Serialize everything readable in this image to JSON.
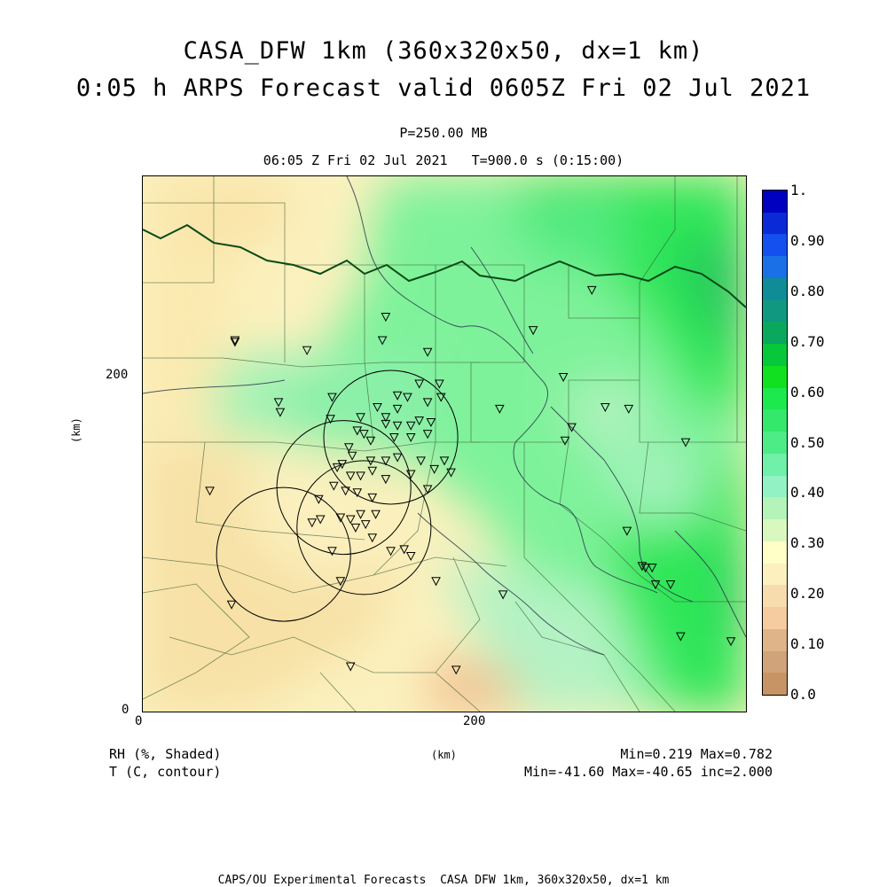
{
  "title": {
    "line1": "CASA_DFW 1km (360x320x50, dx=1 km)",
    "line2": "0:05 h ARPS Forecast valid 0605Z Fri 02 Jul 2021"
  },
  "subtitle": {
    "pressure_level": "P=250.00 MB",
    "time_line": "06:05 Z Fri 02 Jul 2021   T=900.0 s (0:15:00)"
  },
  "axes": {
    "x_label": "(km)",
    "y_label": "(km)",
    "x_ticks": [
      {
        "value": 0,
        "label": "0"
      },
      {
        "value": 200,
        "label": "200"
      }
    ],
    "y_ticks": [
      {
        "value": 0,
        "label": "0"
      },
      {
        "value": 200,
        "label": "200"
      }
    ],
    "x_range_km": [
      0,
      360
    ],
    "y_range_km": [
      0,
      320
    ]
  },
  "colorbar": {
    "labels": [
      "0.0",
      "0.10",
      "0.20",
      "0.30",
      "0.40",
      "0.50",
      "0.60",
      "0.70",
      "0.80",
      "0.90",
      "1."
    ],
    "colors": [
      "#c79466",
      "#d1a37a",
      "#e0b489",
      "#f5cba0",
      "#f7dcae",
      "#fbf0be",
      "#ffffc8",
      "#d8f8c0",
      "#b4f3ba",
      "#93f2c4",
      "#70f0a8",
      "#4dec86",
      "#33e86a",
      "#1de84e",
      "#10e020",
      "#06c83a",
      "#0aa85e",
      "#109880",
      "#108c96",
      "#1a70e6",
      "#1450f0",
      "#0a2ad8",
      "#0000c0"
    ]
  },
  "legend": {
    "field1": "RH (%, Shaded)",
    "field2": "T (C, contour)",
    "field1_stats": "Min=0.219 Max=0.782",
    "field2_stats": "Min=-41.60 Max=-40.65 inc=2.000",
    "units": "(km)"
  },
  "footer": "CAPS/OU Experimental Forecasts  CASA DFW 1km, 360x320x50, dx=1 km",
  "map": {
    "stations_km": [
      [
        55,
        222
      ],
      [
        55,
        221
      ],
      [
        98,
        216
      ],
      [
        143,
        222
      ],
      [
        145,
        236
      ],
      [
        170,
        215
      ],
      [
        113,
        188
      ],
      [
        152,
        189
      ],
      [
        165,
        196
      ],
      [
        177,
        196
      ],
      [
        81,
        185
      ],
      [
        82,
        179
      ],
      [
        112,
        175
      ],
      [
        130,
        176
      ],
      [
        140,
        182
      ],
      [
        145,
        176
      ],
      [
        152,
        181
      ],
      [
        158,
        188
      ],
      [
        170,
        185
      ],
      [
        178,
        188
      ],
      [
        145,
        172
      ],
      [
        152,
        171
      ],
      [
        160,
        171
      ],
      [
        165,
        174
      ],
      [
        172,
        173
      ],
      [
        128,
        168
      ],
      [
        132,
        166
      ],
      [
        136,
        162
      ],
      [
        150,
        164
      ],
      [
        160,
        164
      ],
      [
        170,
        166
      ],
      [
        123,
        158
      ],
      [
        125,
        153
      ],
      [
        136,
        150
      ],
      [
        145,
        150
      ],
      [
        152,
        152
      ],
      [
        166,
        150
      ],
      [
        180,
        150
      ],
      [
        116,
        146
      ],
      [
        119,
        148
      ],
      [
        124,
        141
      ],
      [
        130,
        141
      ],
      [
        137,
        144
      ],
      [
        145,
        139
      ],
      [
        160,
        142
      ],
      [
        174,
        145
      ],
      [
        184,
        143
      ],
      [
        114,
        135
      ],
      [
        121,
        132
      ],
      [
        128,
        131
      ],
      [
        137,
        128
      ],
      [
        170,
        133
      ],
      [
        105,
        127
      ],
      [
        106,
        115
      ],
      [
        118,
        116
      ],
      [
        124,
        115
      ],
      [
        130,
        118
      ],
      [
        139,
        118
      ],
      [
        101,
        113
      ],
      [
        133,
        112
      ],
      [
        137,
        104
      ],
      [
        113,
        96
      ],
      [
        148,
        96
      ],
      [
        156,
        97
      ],
      [
        127,
        110
      ],
      [
        160,
        93
      ],
      [
        175,
        78
      ],
      [
        118,
        78
      ],
      [
        53,
        64
      ],
      [
        124,
        27
      ],
      [
        187,
        25
      ],
      [
        40,
        132
      ],
      [
        213,
        181
      ],
      [
        233,
        228
      ],
      [
        251,
        200
      ],
      [
        252,
        162
      ],
      [
        256,
        170
      ],
      [
        276,
        182
      ],
      [
        290,
        181
      ],
      [
        289,
        108
      ],
      [
        298,
        87
      ],
      [
        300,
        86
      ],
      [
        304,
        86
      ],
      [
        306,
        76
      ],
      [
        315,
        76
      ],
      [
        321,
        45
      ],
      [
        351,
        42
      ],
      [
        324,
        161
      ],
      [
        268,
        252
      ],
      [
        215,
        70
      ]
    ],
    "range_rings_km": [
      {
        "cx": 148,
        "cy": 164,
        "r": 40
      },
      {
        "cx": 120,
        "cy": 134,
        "r": 40
      },
      {
        "cx": 132,
        "cy": 110,
        "r": 40
      },
      {
        "cx": 84,
        "cy": 94,
        "r": 40
      }
    ]
  }
}
